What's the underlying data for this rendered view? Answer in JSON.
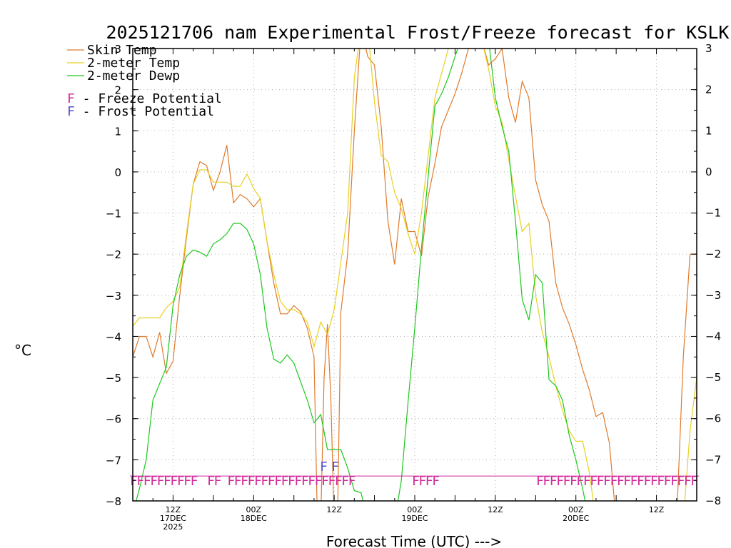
{
  "chart_data": {
    "type": "line",
    "title": "2025121706 nam Experimental Frost/Freeze forecast for KSLK",
    "xlabel": "Forecast Time (UTC) --->",
    "ylabel_unit": "°C",
    "ylim": [
      -8,
      3
    ],
    "xlim": [
      0,
      84
    ],
    "yticks": [
      3,
      2,
      1,
      0,
      -1,
      -2,
      -3,
      -4,
      -5,
      -6,
      -7,
      -8
    ],
    "ytick_labels": [
      "3",
      "2",
      "1",
      "0",
      "−1",
      "−2",
      "−3",
      "−4",
      "−5",
      "−6",
      "−7",
      "−8"
    ],
    "xticks": [
      {
        "hour": 6,
        "lines": [
          "12Z",
          "17DEC",
          "2025"
        ]
      },
      {
        "hour": 18,
        "lines": [
          "00Z",
          "18DEC"
        ]
      },
      {
        "hour": 30,
        "lines": [
          "12Z"
        ]
      },
      {
        "hour": 42,
        "lines": [
          "00Z",
          "19DEC"
        ]
      },
      {
        "hour": 54,
        "lines": [
          "12Z"
        ]
      },
      {
        "hour": 66,
        "lines": [
          "00Z",
          "20DEC"
        ]
      },
      {
        "hour": 78,
        "lines": [
          "12Z"
        ]
      }
    ],
    "grid": true,
    "legend": {
      "position": "top-left",
      "entries": [
        {
          "label": "Skin Temp",
          "color": "#e07a2a"
        },
        {
          "label": "2-meter Temp",
          "color": "#e8d020"
        },
        {
          "label": "2-meter Dewp",
          "color": "#1cc81c"
        }
      ],
      "markers": [
        {
          "letter": "F",
          "text": " - Freeze Potential",
          "color": "#d22a9a"
        },
        {
          "letter": "F",
          "text": " - Frost Potential",
          "color": "#5050d0"
        }
      ]
    },
    "series": [
      {
        "name": "Skin Temp",
        "color": "#e07a2a",
        "x": [
          0,
          1,
          2,
          3,
          4,
          5,
          6,
          7,
          8,
          9,
          10,
          11,
          12,
          13,
          14,
          15,
          16,
          17,
          18,
          19,
          20,
          21,
          22,
          23,
          24,
          25,
          26,
          27,
          27.5,
          28,
          28.5,
          29,
          29.5,
          30,
          30.5,
          31,
          32,
          33,
          34,
          35,
          36,
          37,
          38,
          39,
          40,
          41,
          42,
          43,
          44,
          45,
          46,
          47,
          48,
          49,
          50,
          51,
          52,
          53,
          54,
          55,
          56,
          57,
          58,
          59,
          60,
          61,
          62,
          63,
          64,
          65,
          66,
          67,
          68,
          69,
          70,
          71,
          72,
          73,
          74,
          75,
          76,
          77,
          78,
          79,
          80,
          81,
          82,
          83,
          84
        ],
        "y": [
          -4.5,
          -4.0,
          -4.0,
          -4.5,
          -3.9,
          -4.9,
          -4.6,
          -3.0,
          -1.6,
          -0.3,
          0.25,
          0.15,
          -0.45,
          0.0,
          0.65,
          -0.75,
          -0.55,
          -0.65,
          -0.85,
          -0.65,
          -1.7,
          -2.7,
          -3.45,
          -3.45,
          -3.25,
          -3.4,
          -3.8,
          -4.5,
          -8.5,
          -8.5,
          -5.0,
          -3.7,
          -5.5,
          -8.5,
          -8.5,
          -3.4,
          -2.0,
          1.0,
          3.5,
          2.8,
          2.6,
          1.1,
          -1.2,
          -2.25,
          -0.65,
          -1.45,
          -1.45,
          -2.05,
          -0.6,
          0.2,
          1.1,
          1.5,
          1.9,
          2.4,
          3.0,
          3.1,
          3.2,
          2.6,
          2.75,
          3.0,
          1.8,
          1.2,
          2.2,
          1.8,
          -0.2,
          -0.8,
          -1.2,
          -2.7,
          -3.3,
          -3.7,
          -4.2,
          -4.8,
          -5.3,
          -5.95,
          -5.85,
          -6.6,
          -8.5,
          -8.5,
          -8.5,
          -8.5,
          -8.5,
          -8.5,
          -8.5,
          -8.5,
          -8.5,
          -8.5,
          -4.5,
          -2.0,
          -2.0
        ]
      },
      {
        "name": "2-meter Temp",
        "color": "#e8d020",
        "x": [
          0,
          1,
          2,
          3,
          4,
          5,
          6,
          7,
          8,
          9,
          10,
          11,
          12,
          13,
          14,
          15,
          16,
          17,
          18,
          19,
          20,
          21,
          22,
          23,
          24,
          25,
          26,
          27,
          28,
          29,
          30,
          31,
          32,
          33,
          34,
          35,
          36,
          37,
          38,
          39,
          40,
          41,
          42,
          43,
          44,
          45,
          46,
          47,
          48,
          49,
          50,
          51,
          52,
          53,
          54,
          55,
          56,
          57,
          58,
          59,
          60,
          61,
          62,
          63,
          64,
          65,
          66,
          67,
          68,
          69,
          70,
          71,
          72,
          73,
          74,
          75,
          76,
          77,
          78,
          79,
          80,
          81,
          82,
          83,
          84
        ],
        "y": [
          -3.75,
          -3.55,
          -3.55,
          -3.55,
          -3.55,
          -3.3,
          -3.15,
          -2.8,
          -1.5,
          -0.3,
          0.05,
          0.05,
          -0.25,
          -0.25,
          -0.25,
          -0.35,
          -0.35,
          -0.05,
          -0.4,
          -0.65,
          -1.7,
          -2.5,
          -3.15,
          -3.35,
          -3.35,
          -3.45,
          -3.65,
          -4.25,
          -3.65,
          -3.95,
          -3.35,
          -2.2,
          -1.0,
          2.3,
          3.5,
          3.5,
          1.7,
          0.4,
          0.25,
          -0.5,
          -0.9,
          -1.5,
          -2.0,
          -1.0,
          0.4,
          1.8,
          2.4,
          3.0,
          3.5,
          3.4,
          3.4,
          3.4,
          3.2,
          2.5,
          1.6,
          1.2,
          0.3,
          -0.6,
          -1.45,
          -1.25,
          -3.0,
          -3.9,
          -4.5,
          -5.2,
          -5.8,
          -6.3,
          -6.55,
          -6.55,
          -7.3,
          -8.5,
          -8.5,
          -8.5,
          -8.5,
          -8.5,
          -8.5,
          -8.5,
          -8.5,
          -8.5,
          -8.5,
          -8.5,
          -8.5,
          -8.5,
          -8.5,
          -6.3,
          -5.0
        ]
      },
      {
        "name": "2-meter Dewp",
        "color": "#1cc81c",
        "x": [
          0,
          1,
          2,
          3,
          4,
          5,
          6,
          7,
          8,
          9,
          10,
          11,
          12,
          13,
          14,
          15,
          16,
          17,
          18,
          19,
          20,
          21,
          22,
          23,
          24,
          25,
          26,
          27,
          28,
          29,
          30,
          31,
          32,
          33,
          34,
          35,
          36,
          37,
          38,
          39,
          40,
          41,
          42,
          43,
          44,
          45,
          46,
          47,
          48,
          49,
          50,
          51,
          52,
          53,
          54,
          55,
          56,
          57,
          58,
          59,
          60,
          61,
          62,
          63,
          64,
          65,
          66,
          67,
          68,
          69,
          70,
          71,
          72,
          73,
          74,
          75,
          76,
          77,
          78,
          79,
          80,
          81,
          82,
          83,
          84
        ],
        "y": [
          -8.3,
          -7.7,
          -7.0,
          -5.55,
          -5.15,
          -4.75,
          -3.25,
          -2.5,
          -2.05,
          -1.9,
          -1.95,
          -2.05,
          -1.75,
          -1.65,
          -1.5,
          -1.25,
          -1.25,
          -1.4,
          -1.75,
          -2.5,
          -3.8,
          -4.55,
          -4.65,
          -4.45,
          -4.65,
          -5.1,
          -5.55,
          -6.1,
          -5.9,
          -6.75,
          -6.75,
          -6.75,
          -7.2,
          -7.75,
          -7.8,
          -8.5,
          -8.5,
          -8.5,
          -8.5,
          -8.5,
          -7.5,
          -5.6,
          -3.8,
          -1.85,
          -0.1,
          1.6,
          1.9,
          2.3,
          2.8,
          3.3,
          3.5,
          3.5,
          3.5,
          3.2,
          1.8,
          1.1,
          0.5,
          -1.2,
          -3.1,
          -3.6,
          -2.5,
          -2.7,
          -5.05,
          -5.2,
          -5.55,
          -6.4,
          -7.0,
          -7.7,
          -8.5,
          -8.5,
          -8.5,
          -8.5,
          -8.5,
          -8.5,
          -8.5,
          -8.5,
          -8.5,
          -8.5,
          -8.5,
          -8.5,
          -8.5,
          -8.5,
          -8.5,
          -8.5,
          -8.5
        ]
      }
    ],
    "potential_markers": [
      {
        "kind": "freeze",
        "letter": "F",
        "color": "#d22a9a",
        "y": -7.5,
        "hours": [
          0,
          1,
          2,
          3,
          4,
          5,
          6,
          7,
          8,
          9,
          11.5,
          12.5,
          14.5,
          15.5,
          16.5,
          17.5,
          18.5,
          19.5,
          20.5,
          21.5,
          22.5,
          23.5,
          24.5,
          25.5,
          26.5,
          27.5,
          28.5,
          29.5,
          30.5,
          31.5,
          32.5,
          42,
          43,
          44,
          45,
          60.5,
          61.5,
          62.5,
          63.5,
          64.5,
          65.5,
          66.5,
          67.5,
          68.5,
          69.5,
          70.5,
          71.5,
          72.5,
          73.5,
          74.5,
          75.5,
          76.5,
          77.5,
          78.5,
          79.5,
          80.5,
          81.5,
          82.5,
          83.5
        ]
      },
      {
        "kind": "frost",
        "letter": "F",
        "color": "#5050d0",
        "y": -7.15,
        "hours": [
          28.3,
          30.0
        ]
      }
    ]
  }
}
